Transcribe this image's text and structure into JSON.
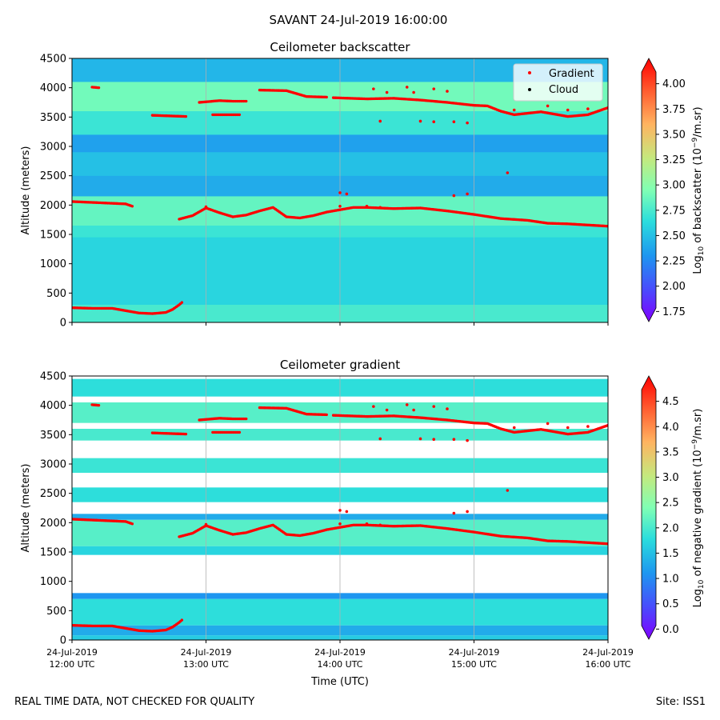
{
  "figure": {
    "title": "SAVANT 24-Jul-2019 16:00:00",
    "footer_left": "REAL TIME DATA, NOT CHECKED FOR QUALITY",
    "footer_right": "Site: ISS1"
  },
  "colors": {
    "gradient_marker": "#ff0000",
    "cloud_marker": "#000000",
    "grid": "#b0b0b0",
    "no_data": "#ffffff"
  },
  "chart_data": [
    {
      "type": "heatmap",
      "title": "Ceilometer backscatter",
      "xlabel": "",
      "ylabel": "Altitude (meters)",
      "xlim_hours": [
        12,
        16
      ],
      "ylim": [
        0,
        4500
      ],
      "yticks": [
        0,
        500,
        1000,
        1500,
        2000,
        2500,
        3000,
        3500,
        4000,
        4500
      ],
      "grid": "vertical",
      "legend": {
        "placement": "top-right",
        "entries": [
          {
            "label": "Gradient",
            "color": "#ff0000"
          },
          {
            "label": "Cloud",
            "color": "#000000"
          }
        ]
      },
      "colorbar": {
        "label_prefix": "Log",
        "label_sub": "10",
        "label_mid": " of backscatter (10",
        "label_sup": "−9",
        "label_suffix": "/m.sr)",
        "range": [
          1.65,
          4.25
        ],
        "ticks": [
          "1.75",
          "2.00",
          "2.25",
          "2.50",
          "2.75",
          "3.00",
          "3.25",
          "3.50",
          "3.75",
          "4.00"
        ]
      },
      "layers": [
        {
          "from": 0,
          "to": 300,
          "value": 2.75
        },
        {
          "from": 300,
          "to": 1450,
          "value": 2.6
        },
        {
          "from": 1450,
          "to": 1650,
          "value": 2.7
        },
        {
          "from": 1650,
          "to": 2150,
          "value": 2.85
        },
        {
          "from": 2150,
          "to": 2500,
          "value": 2.4
        },
        {
          "from": 2500,
          "to": 2900,
          "value": 2.5
        },
        {
          "from": 2900,
          "to": 3200,
          "value": 2.35
        },
        {
          "from": 3200,
          "to": 3600,
          "value": 2.7
        },
        {
          "from": 3600,
          "to": 4100,
          "value": 2.9
        },
        {
          "from": 4100,
          "to": 4500,
          "value": 2.45
        }
      ]
    },
    {
      "type": "heatmap",
      "title": "Ceilometer gradient",
      "xlabel": "Time (UTC)",
      "ylabel": "Altitude (meters)",
      "xlim_hours": [
        12,
        16
      ],
      "ylim": [
        0,
        4500
      ],
      "yticks": [
        0,
        500,
        1000,
        1500,
        2000,
        2500,
        3000,
        3500,
        4000,
        4500
      ],
      "grid": "vertical",
      "colorbar": {
        "label_prefix": "Log",
        "label_sub": "10",
        "label_mid": " of negative gradient (10",
        "label_sup": "−9",
        "label_suffix": "/m.sr)",
        "range": [
          -0.2,
          5.0
        ],
        "ticks": [
          "0.0",
          "0.5",
          "1.0",
          "1.5",
          "2.0",
          "2.5",
          "3.0",
          "3.5",
          "4.0",
          "4.5"
        ]
      },
      "layers": [
        {
          "from": 0,
          "to": 80,
          "value": 1.6
        },
        {
          "from": 80,
          "to": 250,
          "value": 1.3
        },
        {
          "from": 250,
          "to": 700,
          "value": 1.8
        },
        {
          "from": 700,
          "to": 800,
          "value": 1.1
        },
        {
          "from": 1450,
          "to": 1600,
          "value": 1.7
        },
        {
          "from": 1600,
          "to": 2050,
          "value": 2.1
        },
        {
          "from": 2050,
          "to": 2150,
          "value": 1.3
        },
        {
          "from": 2350,
          "to": 2600,
          "value": 1.8
        },
        {
          "from": 2850,
          "to": 3100,
          "value": 1.9
        },
        {
          "from": 3400,
          "to": 3600,
          "value": 2.0
        },
        {
          "from": 3700,
          "to": 4050,
          "value": 2.1
        },
        {
          "from": 4150,
          "to": 4450,
          "value": 1.8
        }
      ]
    }
  ],
  "shared_x": {
    "ticks": [
      {
        "hour": 12,
        "date": "24-Jul-2019",
        "time": "12:00 UTC"
      },
      {
        "hour": 13,
        "date": "24-Jul-2019",
        "time": "13:00 UTC"
      },
      {
        "hour": 14,
        "date": "24-Jul-2019",
        "time": "14:00 UTC"
      },
      {
        "hour": 15,
        "date": "24-Jul-2019",
        "time": "15:00 UTC"
      },
      {
        "hour": 16,
        "date": "24-Jul-2019",
        "time": "16:00 UTC"
      }
    ]
  },
  "gradient_points": [
    {
      "name": "boundary-layer",
      "points": [
        [
          12.0,
          250
        ],
        [
          12.15,
          240
        ],
        [
          12.3,
          240
        ],
        [
          12.4,
          200
        ],
        [
          12.5,
          160
        ],
        [
          12.6,
          150
        ],
        [
          12.7,
          170
        ],
        [
          12.75,
          220
        ],
        [
          12.8,
          300
        ],
        [
          12.82,
          340
        ]
      ]
    },
    {
      "name": "mid-layer-early",
      "points": [
        [
          12.0,
          2060
        ],
        [
          12.2,
          2040
        ],
        [
          12.4,
          2020
        ],
        [
          12.45,
          1980
        ]
      ]
    },
    {
      "name": "mid-layer",
      "points": [
        [
          12.8,
          1760
        ],
        [
          12.9,
          1820
        ],
        [
          13.0,
          1950
        ],
        [
          13.1,
          1870
        ],
        [
          13.2,
          1800
        ],
        [
          13.3,
          1830
        ],
        [
          13.4,
          1900
        ],
        [
          13.5,
          1960
        ],
        [
          13.6,
          1800
        ],
        [
          13.7,
          1780
        ],
        [
          13.8,
          1820
        ],
        [
          13.9,
          1880
        ],
        [
          14.0,
          1920
        ],
        [
          14.1,
          1960
        ],
        [
          14.2,
          1960
        ],
        [
          14.4,
          1940
        ],
        [
          14.6,
          1950
        ],
        [
          14.8,
          1900
        ],
        [
          15.0,
          1840
        ],
        [
          15.2,
          1770
        ],
        [
          15.4,
          1740
        ],
        [
          15.55,
          1690
        ],
        [
          15.7,
          1680
        ],
        [
          15.85,
          1660
        ],
        [
          16.0,
          1640
        ]
      ]
    },
    {
      "name": "mid-layer-spikes",
      "points": [
        [
          13.0,
          1970
        ],
        [
          14.0,
          2210
        ],
        [
          14.05,
          2190
        ],
        [
          14.0,
          1980
        ],
        [
          14.2,
          1980
        ],
        [
          14.3,
          1960
        ],
        [
          14.85,
          2160
        ],
        [
          14.95,
          2190
        ],
        [
          15.25,
          2550
        ]
      ]
    },
    {
      "name": "upper-layer-a",
      "points": [
        [
          12.15,
          4010
        ],
        [
          12.2,
          4000
        ]
      ]
    },
    {
      "name": "upper-layer-b",
      "points": [
        [
          12.6,
          3530
        ],
        [
          12.85,
          3510
        ]
      ]
    },
    {
      "name": "upper-layer-c",
      "points": [
        [
          13.05,
          3540
        ],
        [
          13.25,
          3540
        ]
      ]
    },
    {
      "name": "upper-layer-d",
      "points": [
        [
          12.95,
          3750
        ],
        [
          13.1,
          3780
        ],
        [
          13.2,
          3770
        ],
        [
          13.3,
          3770
        ]
      ]
    },
    {
      "name": "upper-layer-e",
      "points": [
        [
          13.4,
          3960
        ],
        [
          13.6,
          3950
        ],
        [
          13.75,
          3850
        ],
        [
          13.9,
          3840
        ]
      ]
    },
    {
      "name": "upper-layer-f",
      "points": [
        [
          13.95,
          3830
        ],
        [
          14.2,
          3810
        ],
        [
          14.4,
          3820
        ],
        [
          14.6,
          3790
        ],
        [
          14.8,
          3750
        ],
        [
          15.0,
          3700
        ],
        [
          15.1,
          3690
        ],
        [
          15.2,
          3600
        ],
        [
          15.3,
          3540
        ],
        [
          15.5,
          3590
        ],
        [
          15.7,
          3510
        ],
        [
          15.85,
          3540
        ],
        [
          16.0,
          3660
        ]
      ]
    },
    {
      "name": "upper-layer-scatter",
      "points": [
        [
          14.25,
          3980
        ],
        [
          14.35,
          3920
        ],
        [
          14.5,
          4010
        ],
        [
          14.55,
          3920
        ],
        [
          14.7,
          3980
        ],
        [
          14.8,
          3940
        ],
        [
          14.6,
          3430
        ],
        [
          14.7,
          3420
        ],
        [
          14.85,
          3420
        ],
        [
          14.95,
          3400
        ],
        [
          14.3,
          3430
        ],
        [
          15.3,
          3620
        ],
        [
          15.55,
          3690
        ],
        [
          15.7,
          3620
        ],
        [
          15.85,
          3640
        ]
      ]
    }
  ]
}
